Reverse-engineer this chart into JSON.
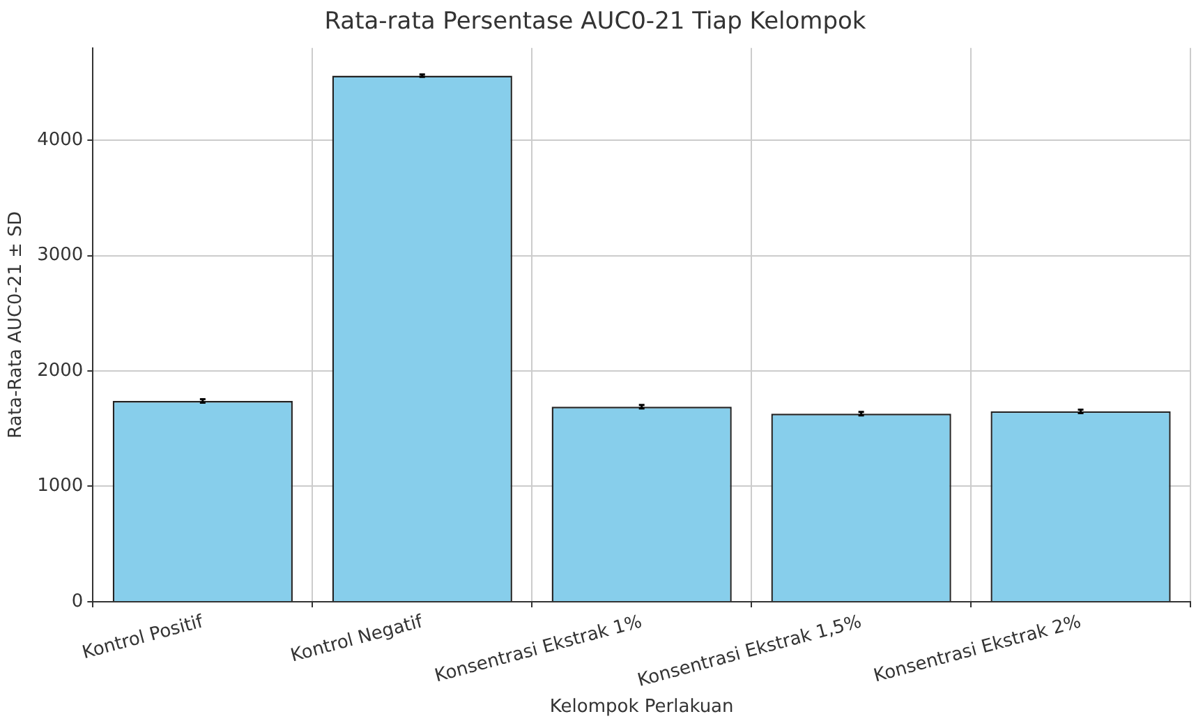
{
  "chart_data": {
    "type": "bar",
    "title": "Rata-rata Persentase AUC0-21 Tiap Kelompok",
    "xlabel": "Kelompok Perlakuan",
    "ylabel": "Rata-Rata AUC0-21 ± SD",
    "categories": [
      "Kontrol Positif",
      "Kontrol Negatif",
      "Konsentrasi Ekstrak 1%",
      "Konsentrasi Ekstrak 1,5%",
      "Konsentrasi Ekstrak 2%"
    ],
    "values": [
      1740,
      4560,
      1690,
      1630,
      1650
    ],
    "errors": [
      15,
      10,
      15,
      15,
      15
    ],
    "color": "#87ceeb",
    "ylim": [
      0,
      4800
    ],
    "yticks": [
      0,
      1000,
      2000,
      3000,
      4000
    ],
    "grid": true
  }
}
